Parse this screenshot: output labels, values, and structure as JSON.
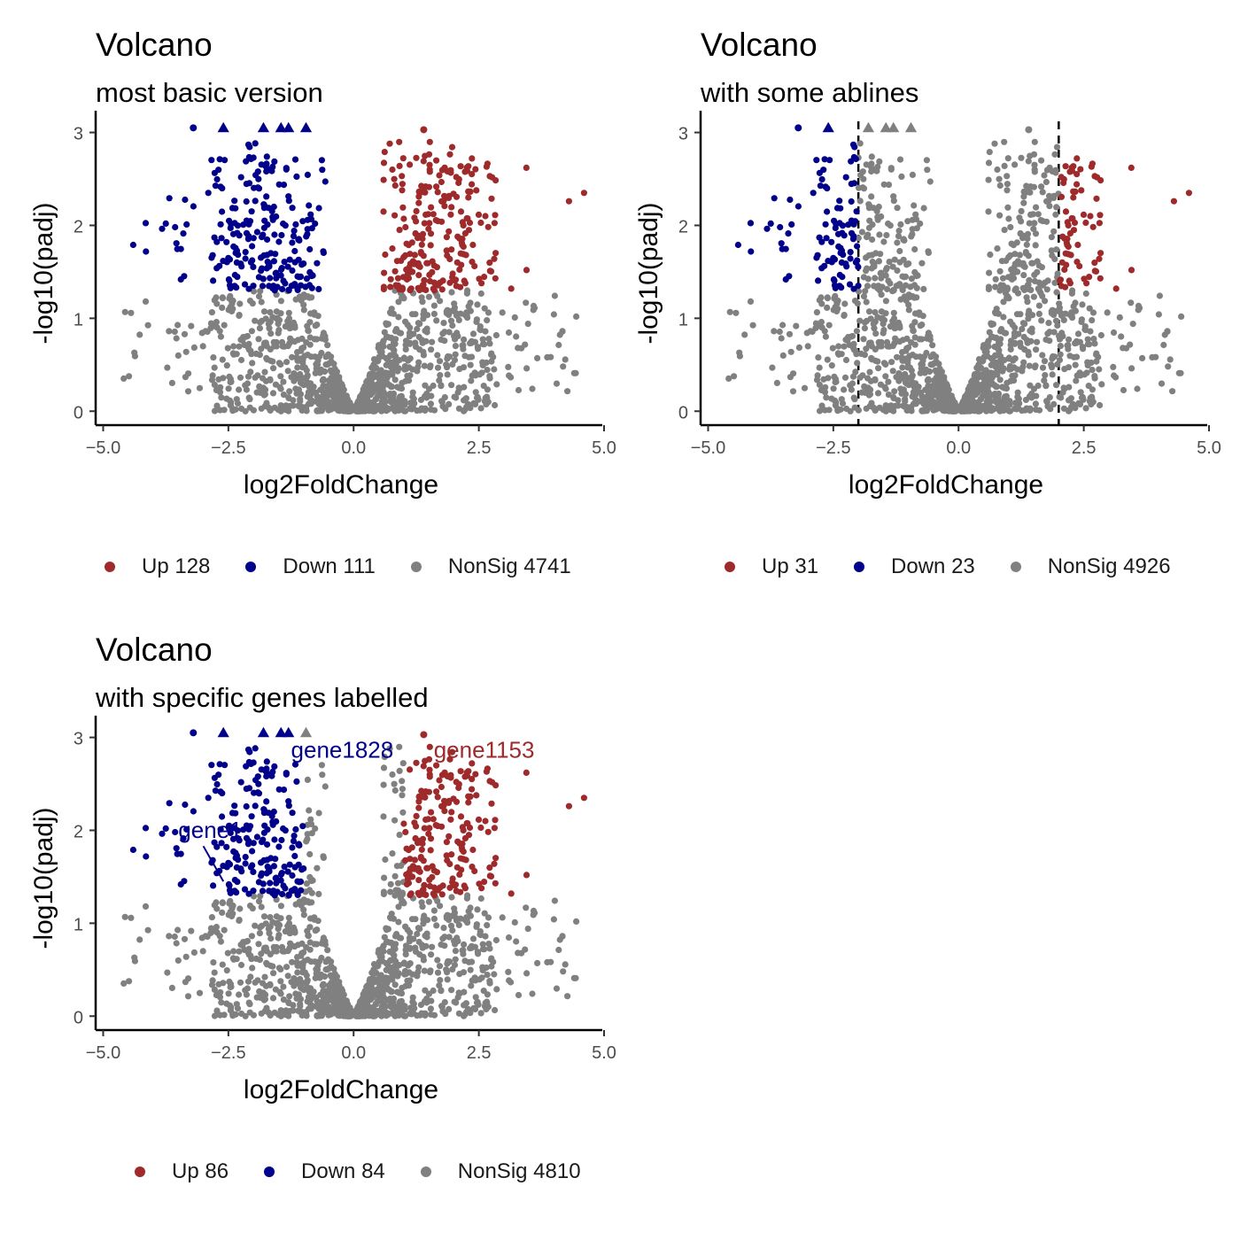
{
  "colors": {
    "up": "#9E2A2B",
    "down": "#00008B",
    "nonsig": "#808080"
  },
  "panels": [
    {
      "title": "Volcano",
      "subtitle": "most basic version",
      "legend": [
        {
          "label": "Up 128",
          "color": "#9E2A2B"
        },
        {
          "label": "Down 111",
          "color": "#00008B"
        },
        {
          "label": "NonSig 4741",
          "color": "#808080"
        }
      ]
    },
    {
      "title": "Volcano",
      "subtitle": "with some ablines",
      "legend": [
        {
          "label": "Up 31",
          "color": "#9E2A2B"
        },
        {
          "label": "Down 23",
          "color": "#00008B"
        },
        {
          "label": "NonSig 4926",
          "color": "#808080"
        }
      ]
    },
    {
      "title": "Volcano",
      "subtitle": "with specific genes labelled",
      "legend": [
        {
          "label": "Up 86",
          "color": "#9E2A2B"
        },
        {
          "label": "Down 84",
          "color": "#00008B"
        },
        {
          "label": "NonSig 4810",
          "color": "#808080"
        }
      ]
    }
  ],
  "chart_data": [
    {
      "type": "scatter",
      "title": "Volcano",
      "subtitle": "most basic version",
      "xlabel": "log2FoldChange",
      "ylabel": "-log10(padj)",
      "xlim": [
        -5.15,
        5.0
      ],
      "ylim": [
        -0.15,
        3.12
      ],
      "xticks": [
        -5.0,
        -2.5,
        0.0,
        2.5,
        5.0
      ],
      "xtick_labels": [
        "−5.0",
        "−2.5",
        "0.0",
        "2.5",
        "5.0"
      ],
      "yticks": [
        0,
        1,
        2,
        3
      ],
      "ytick_labels": [
        "0",
        "1",
        "2",
        "3"
      ],
      "up_threshold_x": 0.55,
      "down_threshold_x": -0.55,
      "sig_threshold_y": 1.3,
      "series": [
        {
          "name": "Up 128",
          "group": "up",
          "count": 128
        },
        {
          "name": "Down 111",
          "group": "down",
          "count": 111
        },
        {
          "name": "NonSig 4741",
          "group": "nonsig",
          "count": 4741
        }
      ],
      "capped_points": [
        {
          "x": -2.6,
          "y": 3.05,
          "group": "down"
        },
        {
          "x": -1.8,
          "y": 3.05,
          "group": "down"
        },
        {
          "x": -1.45,
          "y": 3.05,
          "group": "down"
        },
        {
          "x": -1.3,
          "y": 3.05,
          "group": "down"
        },
        {
          "x": -0.95,
          "y": 3.05,
          "group": "down"
        }
      ],
      "notable_points": [
        {
          "x": -3.2,
          "y": 3.05
        },
        {
          "x": 1.4,
          "y": 3.03
        },
        {
          "x": 3.45,
          "y": 2.62
        },
        {
          "x": 4.6,
          "y": 2.35
        },
        {
          "x": 4.3,
          "y": 2.26
        },
        {
          "x": -4.4,
          "y": 1.79
        },
        {
          "x": -3.75,
          "y": 2.02
        },
        {
          "x": -2.9,
          "y": 2.35
        },
        {
          "x": 2.05,
          "y": 2.52
        }
      ],
      "vlines": []
    },
    {
      "type": "scatter",
      "title": "Volcano",
      "subtitle": "with some ablines",
      "xlabel": "log2FoldChange",
      "ylabel": "-log10(padj)",
      "xlim": [
        -5.15,
        5.0
      ],
      "ylim": [
        -0.15,
        3.12
      ],
      "xticks": [
        -5.0,
        -2.5,
        0.0,
        2.5,
        5.0
      ],
      "xtick_labels": [
        "−5.0",
        "−2.5",
        "0.0",
        "2.5",
        "5.0"
      ],
      "yticks": [
        0,
        1,
        2,
        3
      ],
      "ytick_labels": [
        "0",
        "1",
        "2",
        "3"
      ],
      "up_threshold_x": 2.0,
      "down_threshold_x": -2.0,
      "sig_threshold_y": 1.3,
      "series": [
        {
          "name": "Up 31",
          "group": "up",
          "count": 31
        },
        {
          "name": "Down 23",
          "group": "down",
          "count": 23
        },
        {
          "name": "NonSig 4926",
          "group": "nonsig",
          "count": 4926
        }
      ],
      "capped_points": [
        {
          "x": -2.6,
          "y": 3.05,
          "group": "down"
        },
        {
          "x": -1.8,
          "y": 3.05,
          "group": "nonsig"
        },
        {
          "x": -1.45,
          "y": 3.05,
          "group": "nonsig"
        },
        {
          "x": -1.3,
          "y": 3.05,
          "group": "nonsig"
        },
        {
          "x": -0.95,
          "y": 3.05,
          "group": "nonsig"
        }
      ],
      "notable_points": [
        {
          "x": -3.2,
          "y": 3.05
        },
        {
          "x": 1.4,
          "y": 3.03
        },
        {
          "x": 3.45,
          "y": 2.62
        },
        {
          "x": 4.6,
          "y": 2.35
        },
        {
          "x": 4.3,
          "y": 2.26
        },
        {
          "x": -4.4,
          "y": 1.79
        },
        {
          "x": -3.75,
          "y": 2.02
        },
        {
          "x": -2.9,
          "y": 2.35
        },
        {
          "x": 2.05,
          "y": 2.52
        }
      ],
      "vlines": [
        -2,
        2
      ]
    },
    {
      "type": "scatter",
      "title": "Volcano",
      "subtitle": "with specific genes labelled",
      "xlabel": "log2FoldChange",
      "ylabel": "-log10(padj)",
      "xlim": [
        -5.15,
        5.0
      ],
      "ylim": [
        -0.15,
        3.12
      ],
      "xticks": [
        -5.0,
        -2.5,
        0.0,
        2.5,
        5.0
      ],
      "xtick_labels": [
        "−5.0",
        "−2.5",
        "0.0",
        "2.5",
        "5.0"
      ],
      "yticks": [
        0,
        1,
        2,
        3
      ],
      "ytick_labels": [
        "0",
        "1",
        "2",
        "3"
      ],
      "up_threshold_x": 1.0,
      "down_threshold_x": -1.0,
      "sig_threshold_y": 1.3,
      "series": [
        {
          "name": "Up 86",
          "group": "up",
          "count": 86
        },
        {
          "name": "Down 84",
          "group": "down",
          "count": 84
        },
        {
          "name": "NonSig 4810",
          "group": "nonsig",
          "count": 4810
        }
      ],
      "capped_points": [
        {
          "x": -2.6,
          "y": 3.05,
          "group": "down"
        },
        {
          "x": -1.8,
          "y": 3.05,
          "group": "down"
        },
        {
          "x": -1.45,
          "y": 3.05,
          "group": "down"
        },
        {
          "x": -1.3,
          "y": 3.05,
          "group": "down"
        },
        {
          "x": -0.95,
          "y": 3.05,
          "group": "nonsig"
        }
      ],
      "notable_points": [
        {
          "x": -3.2,
          "y": 3.05
        },
        {
          "x": 1.4,
          "y": 3.03
        },
        {
          "x": 3.45,
          "y": 2.62
        },
        {
          "x": 4.6,
          "y": 2.35
        },
        {
          "x": 4.3,
          "y": 2.26
        },
        {
          "x": -4.4,
          "y": 1.79
        },
        {
          "x": -3.75,
          "y": 2.02
        },
        {
          "x": -2.9,
          "y": 2.35
        },
        {
          "x": 2.05,
          "y": 2.52
        }
      ],
      "vlines": [],
      "annotations": [
        {
          "text": "gene1828",
          "group": "down",
          "x": -1.25,
          "y": 2.78,
          "point_x": -1.3,
          "point_y": 2.82
        },
        {
          "text": "gene1153",
          "group": "up",
          "x": 1.6,
          "y": 2.78,
          "point_x": 1.4,
          "point_y": 3.03
        },
        {
          "text": "gene1",
          "group": "down",
          "x": -3.5,
          "y": 1.92,
          "point_x": -2.6,
          "point_y": 1.45
        }
      ]
    }
  ]
}
